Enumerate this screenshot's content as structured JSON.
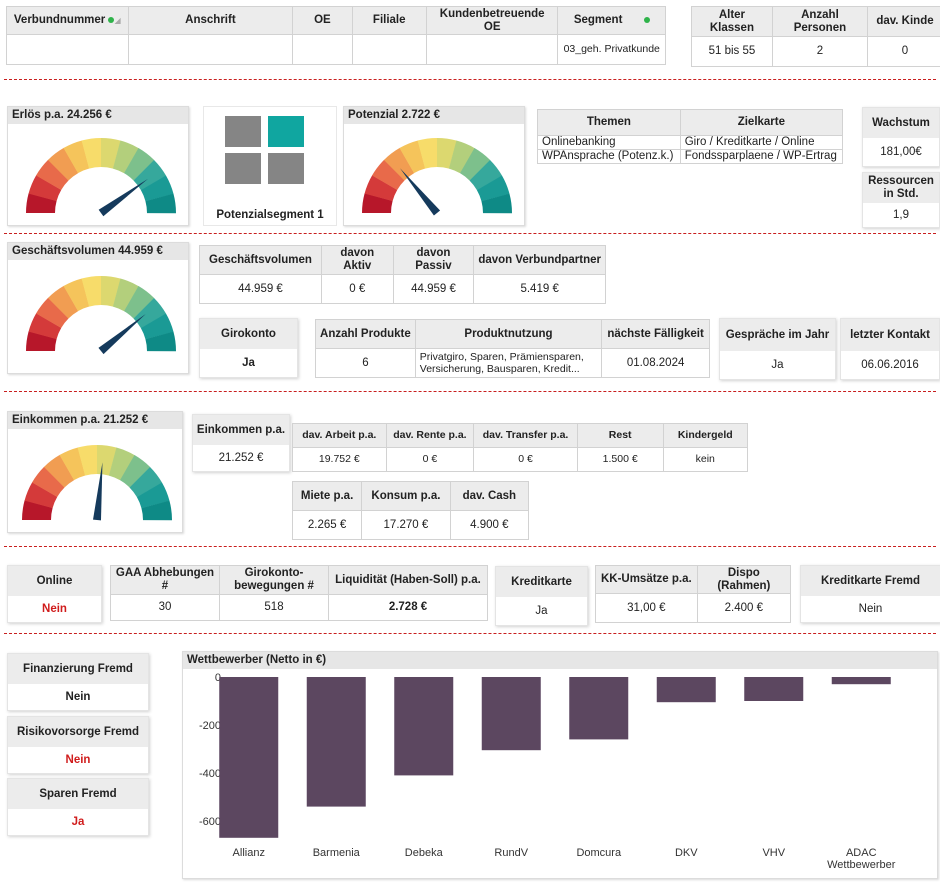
{
  "header_table": {
    "columns": [
      "Verbundnummer",
      "Anschrift",
      "OE",
      "Filiale",
      "Kundenbetreuende OE",
      "Segment"
    ],
    "row": [
      "",
      "",
      "",
      "",
      "",
      "03_geh. Privatkunde"
    ]
  },
  "class_table": {
    "columns": [
      "Alter Klassen",
      "Anzahl Personen",
      "dav. Kinde"
    ],
    "row": [
      "51 bis 55",
      "2",
      "0"
    ]
  },
  "gauges": {
    "erloes": {
      "title": "Erlös p.a. 24.256 €",
      "level": 0.8
    },
    "potenzial": {
      "title": "Potenzial 2.722 €",
      "level": 0.28
    },
    "geschaeft": {
      "title": "Geschäftsvolumen 44.959 €",
      "level": 0.78
    },
    "einkommen": {
      "title": "Einkommen p.a. 21.252 €",
      "level": 0.53
    }
  },
  "segment": {
    "label": "Potenzialsegment 1"
  },
  "themen_table": {
    "columns": [
      "Themen",
      "Zielkarte"
    ],
    "rows": [
      [
        "Onlinebanking",
        "Giro / Kreditkarte / Online"
      ],
      [
        "WPAnsprache (Potenz.k.)",
        "Fondssparplaene / WP-Ertrag"
      ]
    ]
  },
  "wachstum": {
    "label": "Wachstum",
    "value": "181,00€"
  },
  "ressourcen": {
    "label": "Ressourcen in Std.",
    "value": "1,9"
  },
  "volumen_table": {
    "columns": [
      "Geschäftsvolumen",
      "davon Aktiv",
      "davon Passiv",
      "davon Verbundpartner"
    ],
    "row": [
      "44.959 €",
      "0 €",
      "44.959 €",
      "5.419 €"
    ]
  },
  "girokonto": {
    "label": "Girokonto",
    "value": "Ja"
  },
  "produkt_table": {
    "columns": [
      "Anzahl Produkte",
      "Produktnutzung",
      "nächste Fälligkeit"
    ],
    "row": [
      "6",
      "Privatgiro, Sparen, Prämiensparen, Versicherung, Bausparen, Kredit...",
      "01.08.2024"
    ]
  },
  "gespraeche": {
    "label": "Gespräche im Jahr",
    "value": "Ja"
  },
  "kontakt": {
    "label": "letzter Kontakt",
    "value": "06.06.2016"
  },
  "einkommen_card": {
    "label": "Einkommen p.a.",
    "value": "21.252 €"
  },
  "einkommen_table": {
    "columns": [
      "dav. Arbeit p.a.",
      "dav. Rente p.a.",
      "dav. Transfer p.a.",
      "Rest",
      "Kindergeld"
    ],
    "row": [
      "19.752 €",
      "0 €",
      "0 €",
      "1.500 €",
      "kein"
    ]
  },
  "ausgaben_table": {
    "columns": [
      "Miete p.a.",
      "Konsum p.a.",
      "dav. Cash"
    ],
    "row": [
      "2.265 €",
      "17.270 €",
      "4.900 €"
    ]
  },
  "online": {
    "label": "Online",
    "value": "Nein"
  },
  "liquid_table": {
    "columns": [
      "GAA Abhebungen #",
      "Girokonto-bewegungen #",
      "Liquidität (Haben-Soll) p.a."
    ],
    "row": [
      "30",
      "518",
      "2.728 €"
    ]
  },
  "kreditkarte": {
    "label": "Kreditkarte",
    "value": "Ja"
  },
  "kk_table": {
    "columns": [
      "KK-Umsätze p.a.",
      "Dispo (Rahmen)"
    ],
    "row": [
      "31,00 €",
      "2.400 €"
    ]
  },
  "kk_fremd": {
    "label": "Kreditkarte Fremd",
    "value": "Nein"
  },
  "fin_fremd": {
    "label": "Finanzierung Fremd",
    "value": "Nein"
  },
  "risiko_fremd": {
    "label": "Risikovorsorge Fremd",
    "value": "Nein"
  },
  "sparen_fremd": {
    "label": "Sparen Fremd",
    "value": "Ja"
  },
  "chart_data": {
    "type": "bar",
    "title": "Wettbewerber (Netto in €)",
    "categories": [
      "Allianz",
      "Barmenia",
      "Debeka",
      "RundV",
      "Domcura",
      "DKV",
      "VHV",
      "ADAC Wettbewerber"
    ],
    "values": [
      -670,
      -540,
      -410,
      -305,
      -260,
      -105,
      -100,
      -30
    ],
    "ylim": [
      -700,
      0
    ],
    "yticks": [
      "0",
      "-200",
      "-400",
      "-600"
    ],
    "bar_color": "#5c4760",
    "grid": false
  }
}
